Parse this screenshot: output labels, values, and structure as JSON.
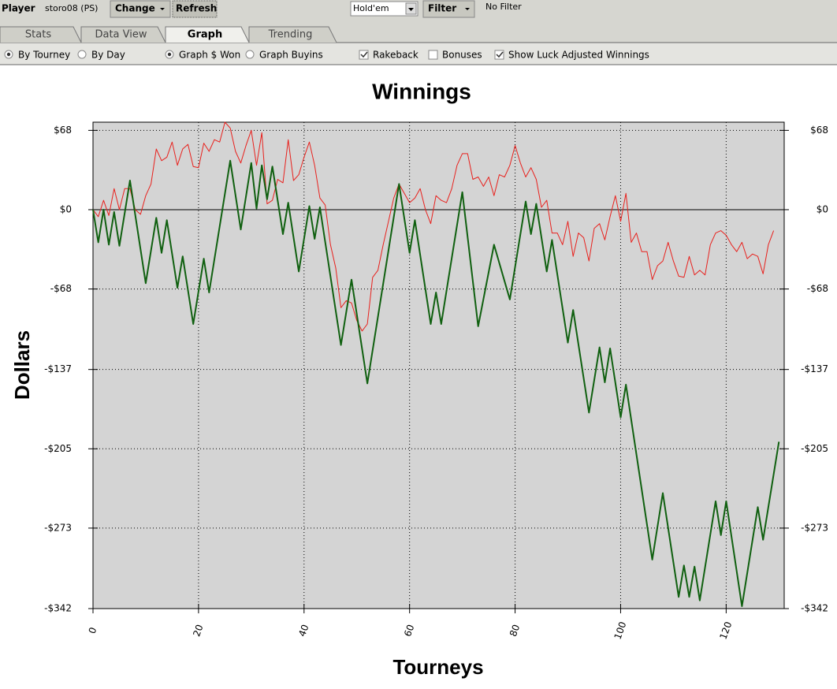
{
  "toolbar": {
    "player_label": "Player",
    "player": "storo08 (PS)",
    "change": "Change",
    "refresh": "Refresh",
    "game": "Hold'em",
    "filter": "Filter",
    "filter_status": "No Filter"
  },
  "tabs": [
    "Stats",
    "Data View",
    "Graph",
    "Trending"
  ],
  "active_tab": 2,
  "options": [
    {
      "label": "By Tourney",
      "kind": "radio",
      "checked": true
    },
    {
      "label": "By Day",
      "kind": "radio",
      "checked": false
    },
    {
      "label": "Graph $ Won",
      "kind": "radio",
      "checked": true
    },
    {
      "label": "Graph Buyins",
      "kind": "radio",
      "checked": false
    },
    {
      "label": "Rakeback",
      "kind": "checkbox",
      "checked": true
    },
    {
      "label": "Bonuses",
      "kind": "checkbox",
      "checked": false
    },
    {
      "label": "Show Luck Adjusted Winnings",
      "kind": "checkbox",
      "checked": true
    }
  ],
  "chart_data": {
    "type": "line",
    "title": "Winnings",
    "xlabel": "Tourneys",
    "ylabel": "Dollars",
    "xlim": [
      0,
      131
    ],
    "ylim": [
      -342,
      75
    ],
    "xticks": [
      0,
      20,
      40,
      60,
      80,
      100,
      120
    ],
    "yticks": [
      {
        "value": 68,
        "label": "$68"
      },
      {
        "value": 0,
        "label": "$0"
      },
      {
        "value": -68,
        "label": "-$68"
      },
      {
        "value": -137,
        "label": "-$137"
      },
      {
        "value": -205,
        "label": "-$205"
      },
      {
        "value": -273,
        "label": "-$273"
      },
      {
        "value": -342,
        "label": "-$342"
      }
    ],
    "grid": true,
    "zero_line": true,
    "series": [
      {
        "color": "#e8201c",
        "width": 1,
        "x": [
          0,
          1,
          2,
          3,
          4,
          5,
          6,
          7,
          8,
          9,
          10,
          11,
          12,
          13,
          14,
          15,
          16,
          17,
          18,
          19,
          20,
          21,
          22,
          23,
          24,
          25,
          26,
          27,
          28,
          29,
          30,
          31,
          32,
          33,
          34,
          35,
          36,
          37,
          38,
          39,
          40,
          41,
          42,
          43,
          44,
          45,
          46,
          47,
          48,
          49,
          50,
          51,
          52,
          53,
          54,
          55,
          56,
          57,
          58,
          59,
          60,
          61,
          62,
          63,
          64,
          65,
          66,
          67,
          68,
          69,
          70,
          71,
          72,
          73,
          74,
          75,
          76,
          77,
          78,
          79,
          80,
          81,
          82,
          83,
          84,
          85,
          86,
          87,
          88,
          89,
          90,
          91,
          92,
          93,
          94,
          95,
          96,
          97,
          98,
          99,
          100,
          101,
          102,
          103,
          104,
          105,
          106,
          107,
          108,
          109,
          110,
          111,
          112,
          113,
          114,
          115,
          116,
          117,
          118,
          119,
          120,
          121,
          122,
          123,
          124,
          125,
          126,
          127,
          128,
          129
        ],
        "values": [
          0,
          -6,
          8,
          -5,
          18,
          0,
          18,
          18,
          0,
          -4,
          12,
          22,
          52,
          42,
          45,
          58,
          38,
          52,
          56,
          37,
          36,
          57,
          50,
          60,
          58,
          75,
          70,
          50,
          40,
          55,
          68,
          38,
          66,
          5,
          8,
          26,
          23,
          60,
          25,
          30,
          45,
          58,
          38,
          10,
          4,
          -30,
          -50,
          -84,
          -78,
          -80,
          -95,
          -104,
          -98,
          -58,
          -52,
          -30,
          -10,
          10,
          22,
          14,
          6,
          10,
          18,
          0,
          -12,
          12,
          8,
          6,
          18,
          38,
          48,
          48,
          26,
          28,
          20,
          28,
          12,
          30,
          28,
          38,
          55,
          40,
          28,
          36,
          26,
          2,
          8,
          -20,
          -20,
          -30,
          -10,
          -40,
          -20,
          -24,
          -44,
          -16,
          -12,
          -26,
          -6,
          12,
          -10,
          14,
          -28,
          -20,
          -36,
          -36,
          -60,
          -48,
          -44,
          -28,
          -44,
          -57,
          -58,
          -40,
          -56,
          -52,
          -56,
          -30,
          -20,
          -18,
          -22,
          -30,
          -36,
          -28,
          -42,
          -38,
          -40,
          -55,
          -30,
          -18
        ]
      },
      {
        "color": "#106010",
        "width": 2,
        "x": [
          0,
          1,
          2,
          3,
          4,
          5,
          7,
          10,
          12,
          13,
          14,
          16,
          17,
          19,
          21,
          22,
          26,
          28,
          30,
          31,
          32,
          33,
          34,
          36,
          37,
          39,
          41,
          42,
          43,
          47,
          49,
          52,
          58,
          60,
          61,
          64,
          65,
          66,
          70,
          73,
          76,
          79,
          82,
          83,
          84,
          86,
          87,
          90,
          91,
          94,
          96,
          97,
          98,
          100,
          101,
          106,
          108,
          111,
          112,
          113,
          114,
          115,
          118,
          119,
          120,
          123,
          126,
          127,
          130
        ],
        "values": [
          0,
          -28,
          0,
          -30,
          -2,
          -31,
          25,
          -63,
          -7,
          -37,
          -9,
          -67,
          -40,
          -98,
          -42,
          -71,
          42,
          -17,
          40,
          1,
          38,
          9,
          37,
          -21,
          6,
          -53,
          3,
          -25,
          2,
          -116,
          -60,
          -149,
          22,
          -37,
          -9,
          -98,
          -71,
          -98,
          15,
          -100,
          -30,
          -77,
          7,
          -21,
          5,
          -53,
          -26,
          -114,
          -86,
          -174,
          -118,
          -148,
          -119,
          -178,
          -150,
          -300,
          -243,
          -332,
          -305,
          -332,
          -306,
          -335,
          -250,
          -279,
          -250,
          -340,
          -255,
          -283,
          -199
        ]
      }
    ]
  }
}
